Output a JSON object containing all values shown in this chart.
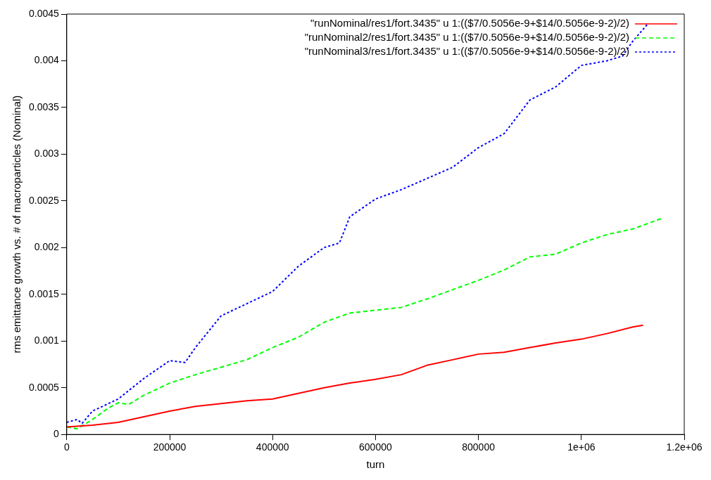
{
  "chart_data": {
    "type": "line",
    "xlabel": "turn",
    "ylabel": "rms emittance growth vs. # of macroparticles (Nominal)",
    "xlim": [
      0,
      1200000
    ],
    "xticks": [
      0,
      200000,
      400000,
      600000,
      800000,
      {
        "value": 1000000,
        "label": "1e+06"
      },
      {
        "value": 1200000,
        "label": "1.2e+06"
      }
    ],
    "ylim": [
      0,
      0.0045
    ],
    "yticks": [
      0,
      0.0005,
      0.001,
      0.0015,
      0.002,
      0.0025,
      0.003,
      0.0035,
      0.004,
      0.0045
    ],
    "grid": false,
    "legend": "top right",
    "marker": "none",
    "series": [
      {
        "name": "\"runNominal/res1/fort.3435\" u 1:(($7/0.5056e-9+$14/0.5056e-9-2)/2)",
        "color": "#ff0000",
        "line_style": "solid",
        "x": [
          0,
          50000,
          100000,
          150000,
          200000,
          250000,
          300000,
          350000,
          400000,
          450000,
          500000,
          550000,
          600000,
          650000,
          700000,
          750000,
          800000,
          850000,
          900000,
          950000,
          1000000,
          1050000,
          1100000,
          1120000
        ],
        "values": [
          8e-05,
          0.0001,
          0.00013,
          0.00019,
          0.00025,
          0.0003,
          0.00033,
          0.00036,
          0.00038,
          0.00044,
          0.0005,
          0.00055,
          0.00059,
          0.00064,
          0.00074,
          0.0008,
          0.00086,
          0.00088,
          0.00093,
          0.00098,
          0.00102,
          0.00108,
          0.00115,
          0.00117
        ]
      },
      {
        "name": "\"runNominal2/res1/fort.3435\" u 1:(($7/0.5056e-9+$14/0.5056e-9-2)/2)",
        "color": "#00ff00",
        "line_style": "dashed",
        "x": [
          0,
          20000,
          50000,
          80000,
          100000,
          120000,
          150000,
          200000,
          250000,
          300000,
          350000,
          400000,
          450000,
          500000,
          550000,
          600000,
          650000,
          700000,
          750000,
          800000,
          850000,
          900000,
          950000,
          1000000,
          1050000,
          1100000,
          1160000
        ],
        "values": [
          8e-05,
          6e-05,
          0.00016,
          0.00028,
          0.00034,
          0.00032,
          0.00042,
          0.00055,
          0.00064,
          0.00072,
          0.0008,
          0.00093,
          0.00104,
          0.0012,
          0.0013,
          0.00133,
          0.00136,
          0.00145,
          0.00155,
          0.00165,
          0.00176,
          0.0019,
          0.00193,
          0.00205,
          0.00214,
          0.0022,
          0.00232
        ]
      },
      {
        "name": "\"runNominal3/res1/fort.3435\" u 1:(($7/0.5056e-9+$14/0.5056e-9-2)/2)",
        "color": "#0000ff",
        "line_style": "dotted",
        "x": [
          0,
          20000,
          30000,
          50000,
          100000,
          150000,
          200000,
          230000,
          250000,
          300000,
          350000,
          400000,
          450000,
          500000,
          530000,
          550000,
          600000,
          650000,
          700000,
          750000,
          800000,
          850000,
          900000,
          950000,
          1000000,
          1050000,
          1080000,
          1100000,
          1130000
        ],
        "values": [
          0.00013,
          0.00016,
          0.00012,
          0.00025,
          0.00038,
          0.0006,
          0.00079,
          0.00077,
          0.00093,
          0.00127,
          0.0014,
          0.00153,
          0.0018,
          0.002,
          0.00205,
          0.00233,
          0.00252,
          0.00262,
          0.00274,
          0.00286,
          0.00307,
          0.00322,
          0.00358,
          0.00372,
          0.00395,
          0.004,
          0.00405,
          0.00421,
          0.0044
        ]
      }
    ]
  }
}
